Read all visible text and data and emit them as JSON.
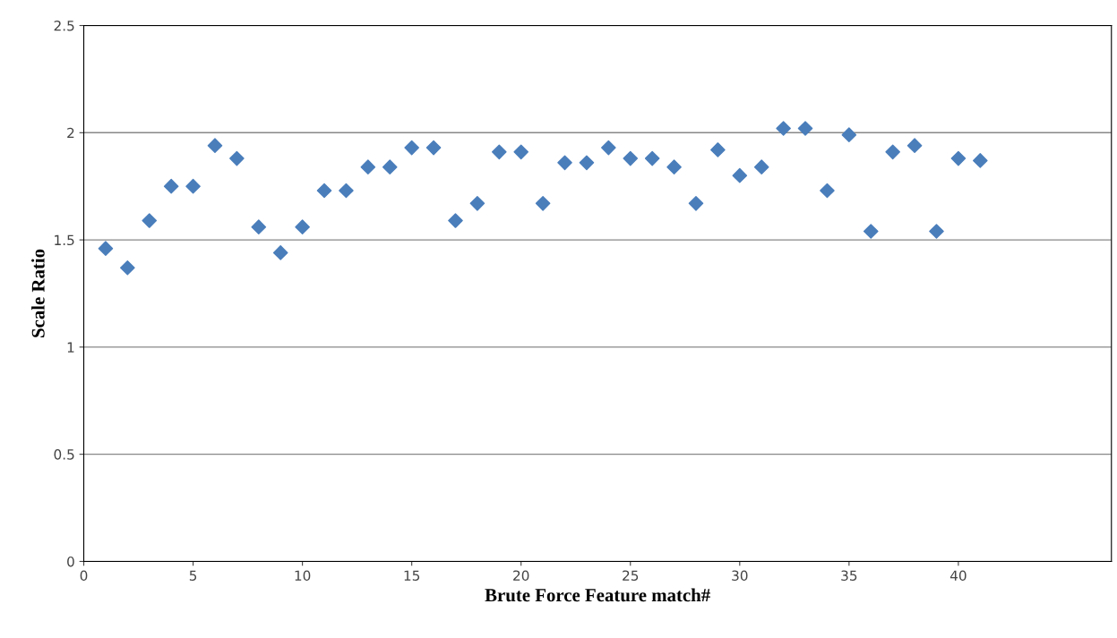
{
  "chart_data": {
    "type": "scatter",
    "xlabel": "Brute Force Feature match#",
    "ylabel": "Scale Ratio",
    "x": [
      1,
      2,
      3,
      4,
      5,
      6,
      7,
      8,
      9,
      10,
      11,
      12,
      13,
      14,
      15,
      16,
      17,
      18,
      19,
      20,
      21,
      22,
      23,
      24,
      25,
      26,
      27,
      28,
      29,
      30,
      31,
      32,
      33,
      34,
      35,
      36,
      37,
      38,
      39,
      40,
      41
    ],
    "series": [
      {
        "color": "#4a7ebb",
        "values": [
          1.46,
          1.37,
          1.59,
          1.75,
          1.75,
          1.94,
          1.88,
          1.56,
          1.44,
          1.56,
          1.73,
          1.73,
          1.84,
          1.84,
          1.93,
          1.93,
          1.59,
          1.67,
          1.91,
          1.91,
          1.67,
          1.86,
          1.86,
          1.93,
          1.88,
          1.88,
          1.84,
          1.67,
          1.92,
          1.8,
          1.84,
          2.02,
          2.02,
          1.73,
          1.99,
          1.54,
          1.91,
          1.94,
          1.54,
          1.88,
          1.87
        ]
      }
    ],
    "xlim": [
      0,
      47
    ],
    "xticks": [
      0,
      5,
      10,
      15,
      20,
      25,
      30,
      35,
      40
    ],
    "ylim": [
      0,
      2.5
    ],
    "yticks": [
      0,
      0.5,
      1,
      1.5,
      2,
      2.5
    ],
    "grid": "y",
    "marker": "diamond",
    "legend": false
  }
}
